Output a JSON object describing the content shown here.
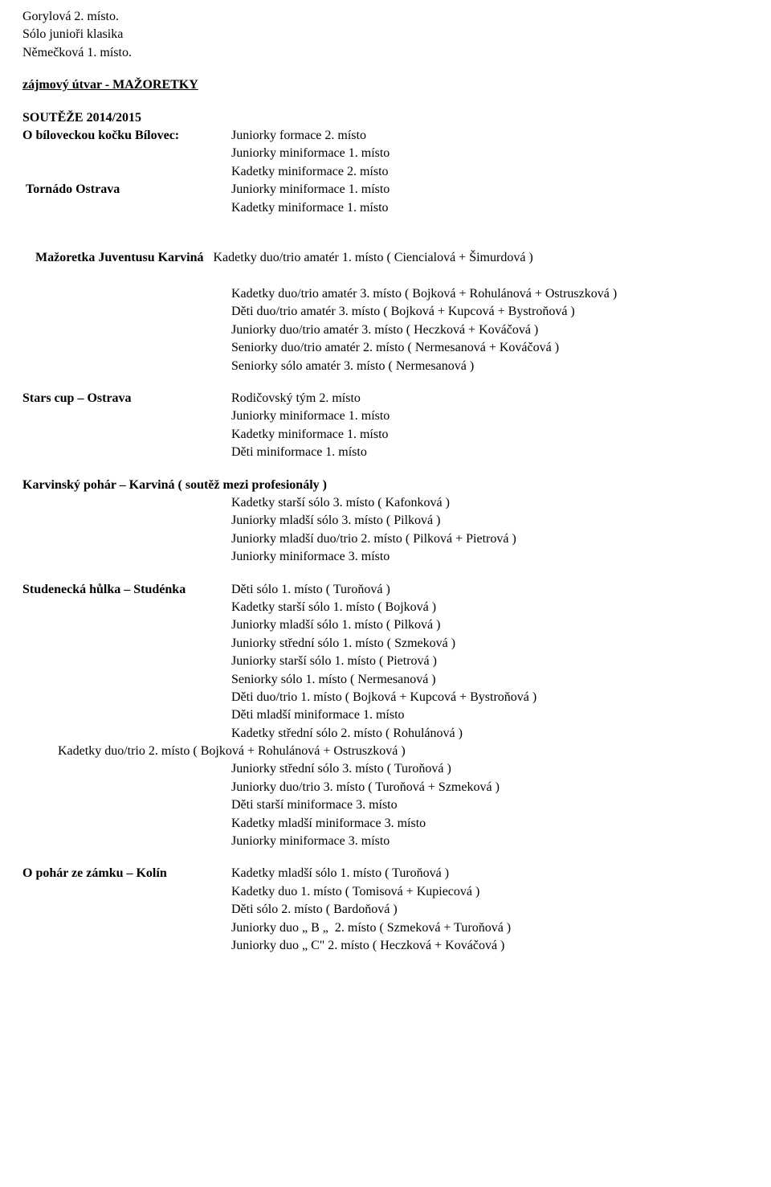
{
  "top": {
    "l1": "Gorylová 2. místo.",
    "l2": "Sólo junioři klasika",
    "l3": "Němečková 1. místo."
  },
  "section_title": "zájmový útvar - MAŽORETKY",
  "competitions_header": "SOUTĚŽE 2014/2015",
  "comp1": {
    "label": "O bíloveckou kočku Bílovec:",
    "r1": "Juniorky formace 2. místo",
    "r2": "Juniorky miniformace 1. místo",
    "r3": "Kadetky miniformace 2. místo"
  },
  "comp2": {
    "label": " Tornádo Ostrava",
    "r1": "Juniorky miniformace 1. místo",
    "r2": "Kadetky miniformace 1. místo"
  },
  "comp3": {
    "label_bold": "Mažoretka Juventusu Karviná",
    "label_rest": "   Kadetky duo/trio amatér 1. místo ( Ciencialová + Šimurdová )",
    "r2": "Kadetky duo/trio amatér 3. místo ( Bojková + Rohulánová + Ostruszková )",
    "r3": "Děti duo/trio amatér 3. místo ( Bojková + Kupcová + Bystroňová )",
    "r4": "Juniorky duo/trio amatér 3. místo ( Heczková + Kováčová )",
    "r5": "Seniorky duo/trio amatér 2. místo ( Nermesanová + Kováčová )",
    "r6": "Seniorky sólo amatér 3. místo ( Nermesanová )"
  },
  "comp4": {
    "label": "Stars cup – Ostrava",
    "r1": "Rodičovský tým 2. místo",
    "r2": "Juniorky miniformace 1. místo",
    "r3": "Kadetky miniformace 1. místo",
    "r4": "Děti miniformace 1. místo"
  },
  "comp5": {
    "label": "Karvinský pohár – Karviná ( soutěž mezi profesionály )",
    "r1": "Kadetky starší sólo 3. místo ( Kafonková )",
    "r2": "Juniorky mladší sólo 3. místo ( Pilková )",
    "r3": "Juniorky mladší duo/trio 2. místo ( Pilková + Pietrová )",
    "r4": "Juniorky miniformace 3. místo"
  },
  "comp6": {
    "label": "Studenecká hůlka – Studénka",
    "r1": "Děti sólo 1. místo ( Turoňová )",
    "r2": "Kadetky starší sólo 1. místo ( Bojková )",
    "r3": "Juniorky mladší sólo 1. místo ( Pilková )",
    "r4": "Juniorky střední sólo 1. místo ( Szmeková )",
    "r5": "Juniorky starší sólo 1. místo ( Pietrová )",
    "r6": "Seniorky sólo 1. místo ( Nermesanová )",
    "r7": "Děti duo/trio 1. místo ( Bojková + Kupcová + Bystroňová )",
    "r8": "Děti mladší miniformace 1. místo",
    "r9": "Kadetky střední sólo 2. místo ( Rohulánová )",
    "r10_indent": "           Kadetky duo/trio 2. místo ( Bojková + Rohulánová + Ostruszková )",
    "r11": "Juniorky střední sólo 3. místo ( Turoňová )",
    "r12": "Juniorky duo/trio 3. místo ( Turoňová + Szmeková )",
    "r13": "Děti starší miniformace 3. místo",
    "r14": "Kadetky mladší miniformace 3. místo",
    "r15": "Juniorky miniformace 3. místo"
  },
  "comp7": {
    "label": "O pohár ze zámku – Kolín",
    "r1": "Kadetky mladší sólo 1. místo ( Turoňová )",
    "r2": "Kadetky duo 1. místo ( Tomisová + Kupiecová )",
    "r3": "Děti sólo 2. místo ( Bardoňová )",
    "r4": "Juniorky duo „ B „  2. místo ( Szmeková + Turoňová )",
    "r5": "Juniorky duo „ C\" 2. místo ( Heczková + Kováčová )"
  }
}
